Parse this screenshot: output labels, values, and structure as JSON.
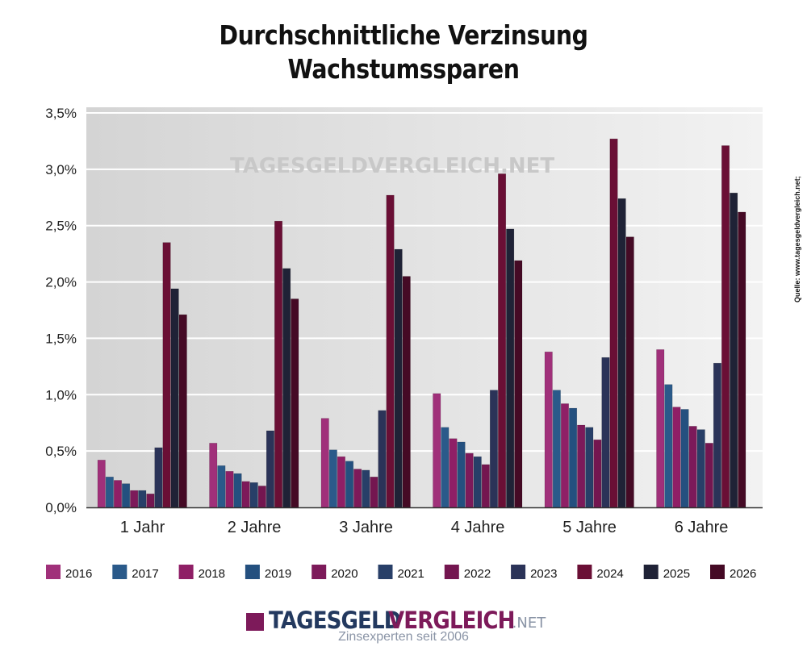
{
  "chart_data": {
    "type": "bar",
    "title": "Durchschnittliche Verzinsung",
    "subtitle": "Wachstumssparen",
    "xlabel": "",
    "ylabel": "",
    "ylim": [
      0,
      3.5
    ],
    "yticks": [
      "0,0%",
      "0,5%",
      "1,0%",
      "1,5%",
      "2,0%",
      "2,5%",
      "3,0%",
      "3,5%"
    ],
    "grid": true,
    "legend_position": "bottom",
    "categories": [
      "1 Jahr",
      "2 Jahre",
      "3 Jahre",
      "4 Jahre",
      "5 Jahre",
      "6 Jahre"
    ],
    "series": [
      {
        "name": "2016",
        "color": "#a0307a",
        "values": [
          0.42,
          0.57,
          0.79,
          1.01,
          1.38,
          1.4
        ]
      },
      {
        "name": "2017",
        "color": "#2a5a8a",
        "values": [
          0.27,
          0.37,
          0.51,
          0.71,
          1.04,
          1.09
        ]
      },
      {
        "name": "2018",
        "color": "#8f1f66",
        "values": [
          0.24,
          0.32,
          0.45,
          0.61,
          0.92,
          0.89
        ]
      },
      {
        "name": "2019",
        "color": "#24507f",
        "values": [
          0.21,
          0.3,
          0.41,
          0.58,
          0.88,
          0.87
        ]
      },
      {
        "name": "2020",
        "color": "#7d1a5a",
        "values": [
          0.15,
          0.23,
          0.34,
          0.48,
          0.73,
          0.72
        ]
      },
      {
        "name": "2021",
        "color": "#283f68",
        "values": [
          0.15,
          0.22,
          0.33,
          0.45,
          0.71,
          0.69
        ]
      },
      {
        "name": "2022",
        "color": "#741650",
        "values": [
          0.12,
          0.19,
          0.27,
          0.38,
          0.6,
          0.57
        ]
      },
      {
        "name": "2023",
        "color": "#2b3358",
        "values": [
          0.53,
          0.68,
          0.86,
          1.04,
          1.33,
          1.28
        ]
      },
      {
        "name": "2024",
        "color": "#6a0f35",
        "values": [
          2.35,
          2.54,
          2.77,
          2.96,
          3.27,
          3.21
        ]
      },
      {
        "name": "2025",
        "color": "#1f2236",
        "values": [
          1.94,
          2.12,
          2.29,
          2.47,
          2.74,
          2.79
        ]
      },
      {
        "name": "2026",
        "color": "#450a25",
        "values": [
          1.71,
          1.85,
          2.05,
          2.19,
          2.4,
          2.62
        ]
      }
    ]
  },
  "source": "Quelle: www.tagesgeldvergleich.net;",
  "watermark": "TAGESGELDVERGLEICH.NET",
  "logo": {
    "part1": "TAGESGELD",
    "part2": "VERGLEICH",
    "part3": ".NET",
    "tagline": "Zinsexperten seit 2006"
  }
}
